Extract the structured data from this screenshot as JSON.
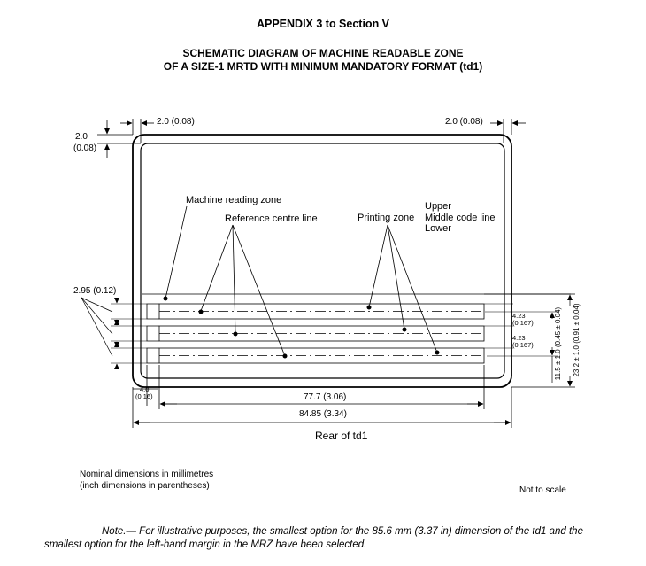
{
  "heading": "APPENDIX 3 to Section V",
  "title_line1": "SCHEMATIC DIAGRAM OF MACHINE READABLE ZONE",
  "title_line2": "OF A SIZE-1 MRTD WITH MINIMUM MANDATORY FORMAT (td1)",
  "labels": {
    "machine_reading_zone": "Machine reading zone",
    "reference_centre_line": "Reference centre line",
    "printing_zone": "Printing zone",
    "upper": "Upper",
    "middle_code_line": "Middle code line",
    "lower": "Lower"
  },
  "dimensions": {
    "top_left_margin": "2.0 (0.08)",
    "top_right_margin": "2.0 (0.08)",
    "side_margin_value": "2.0",
    "side_margin_inch": "(0.08)",
    "line_height": "2.95  (0.12)",
    "left_margin_value": "4.0",
    "left_margin_inch": "(0.16)",
    "print_width": "77.7 (3.06)",
    "card_width": "84.85 (3.34)",
    "line_spacing_1_value": "4.23",
    "line_spacing_1_inch": "(0.167)",
    "line_spacing_2_value": "4.23",
    "line_spacing_2_inch": "(0.167)",
    "zone_height_inner": "11.5 ± 1.0 (0.45 ± 0.04)",
    "zone_height_outer": "23.2 ± 1.0 (0.91 ± 0.04)"
  },
  "caption": "Rear of td1",
  "nominal_line1": "Nominal dimensions in millimetres",
  "nominal_line2": "(inch dimensions in parentheses)",
  "not_to_scale": "Not to scale",
  "note_line1": "Note.— For illustrative purposes, the smallest option for the 85.6 mm (3.37 in) dimension of the td1 and the",
  "note_line2": "smallest option for the left-hand margin in the MRZ have been selected."
}
